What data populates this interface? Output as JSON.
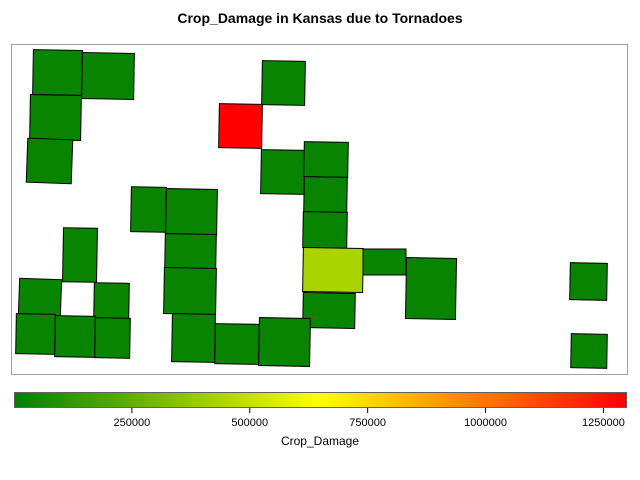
{
  "chart_data": {
    "type": "map",
    "title": "Crop_Damage in Kansas due to Tornadoes",
    "color_variable": "Crop_Damage",
    "legend": {
      "position": "bottom",
      "range": [
        0,
        1300000
      ],
      "ticks": [
        "250000",
        "500000",
        "750000",
        "1000000",
        "1250000"
      ],
      "colors": [
        "#008000",
        "#ffff00",
        "#ff0000"
      ]
    },
    "regions": [
      {
        "value": 20000
      },
      {
        "value": 20000
      },
      {
        "value": 20000
      },
      {
        "value": 20000
      },
      {
        "value": 20000
      },
      {
        "value": 1300000
      },
      {
        "value": 20000
      },
      {
        "value": 20000
      },
      {
        "value": 20000
      },
      {
        "value": 20000
      },
      {
        "value": 20000
      },
      {
        "value": 20000
      },
      {
        "value": 20000
      },
      {
        "value": 20000
      },
      {
        "value": 20000
      },
      {
        "value": 20000
      },
      {
        "value": 20000
      },
      {
        "value": 20000
      },
      {
        "value": 20000
      },
      {
        "value": 20000
      },
      {
        "value": 20000
      },
      {
        "value": 20000
      },
      {
        "value": 430000
      },
      {
        "value": 20000
      },
      {
        "value": 20000
      },
      {
        "value": 20000
      },
      {
        "value": 20000
      },
      {
        "value": 20000
      },
      {
        "value": 20000
      },
      {
        "value": 20000
      },
      {
        "value": 20000
      },
      {
        "value": 20000
      },
      {
        "value": 20000
      }
    ]
  }
}
